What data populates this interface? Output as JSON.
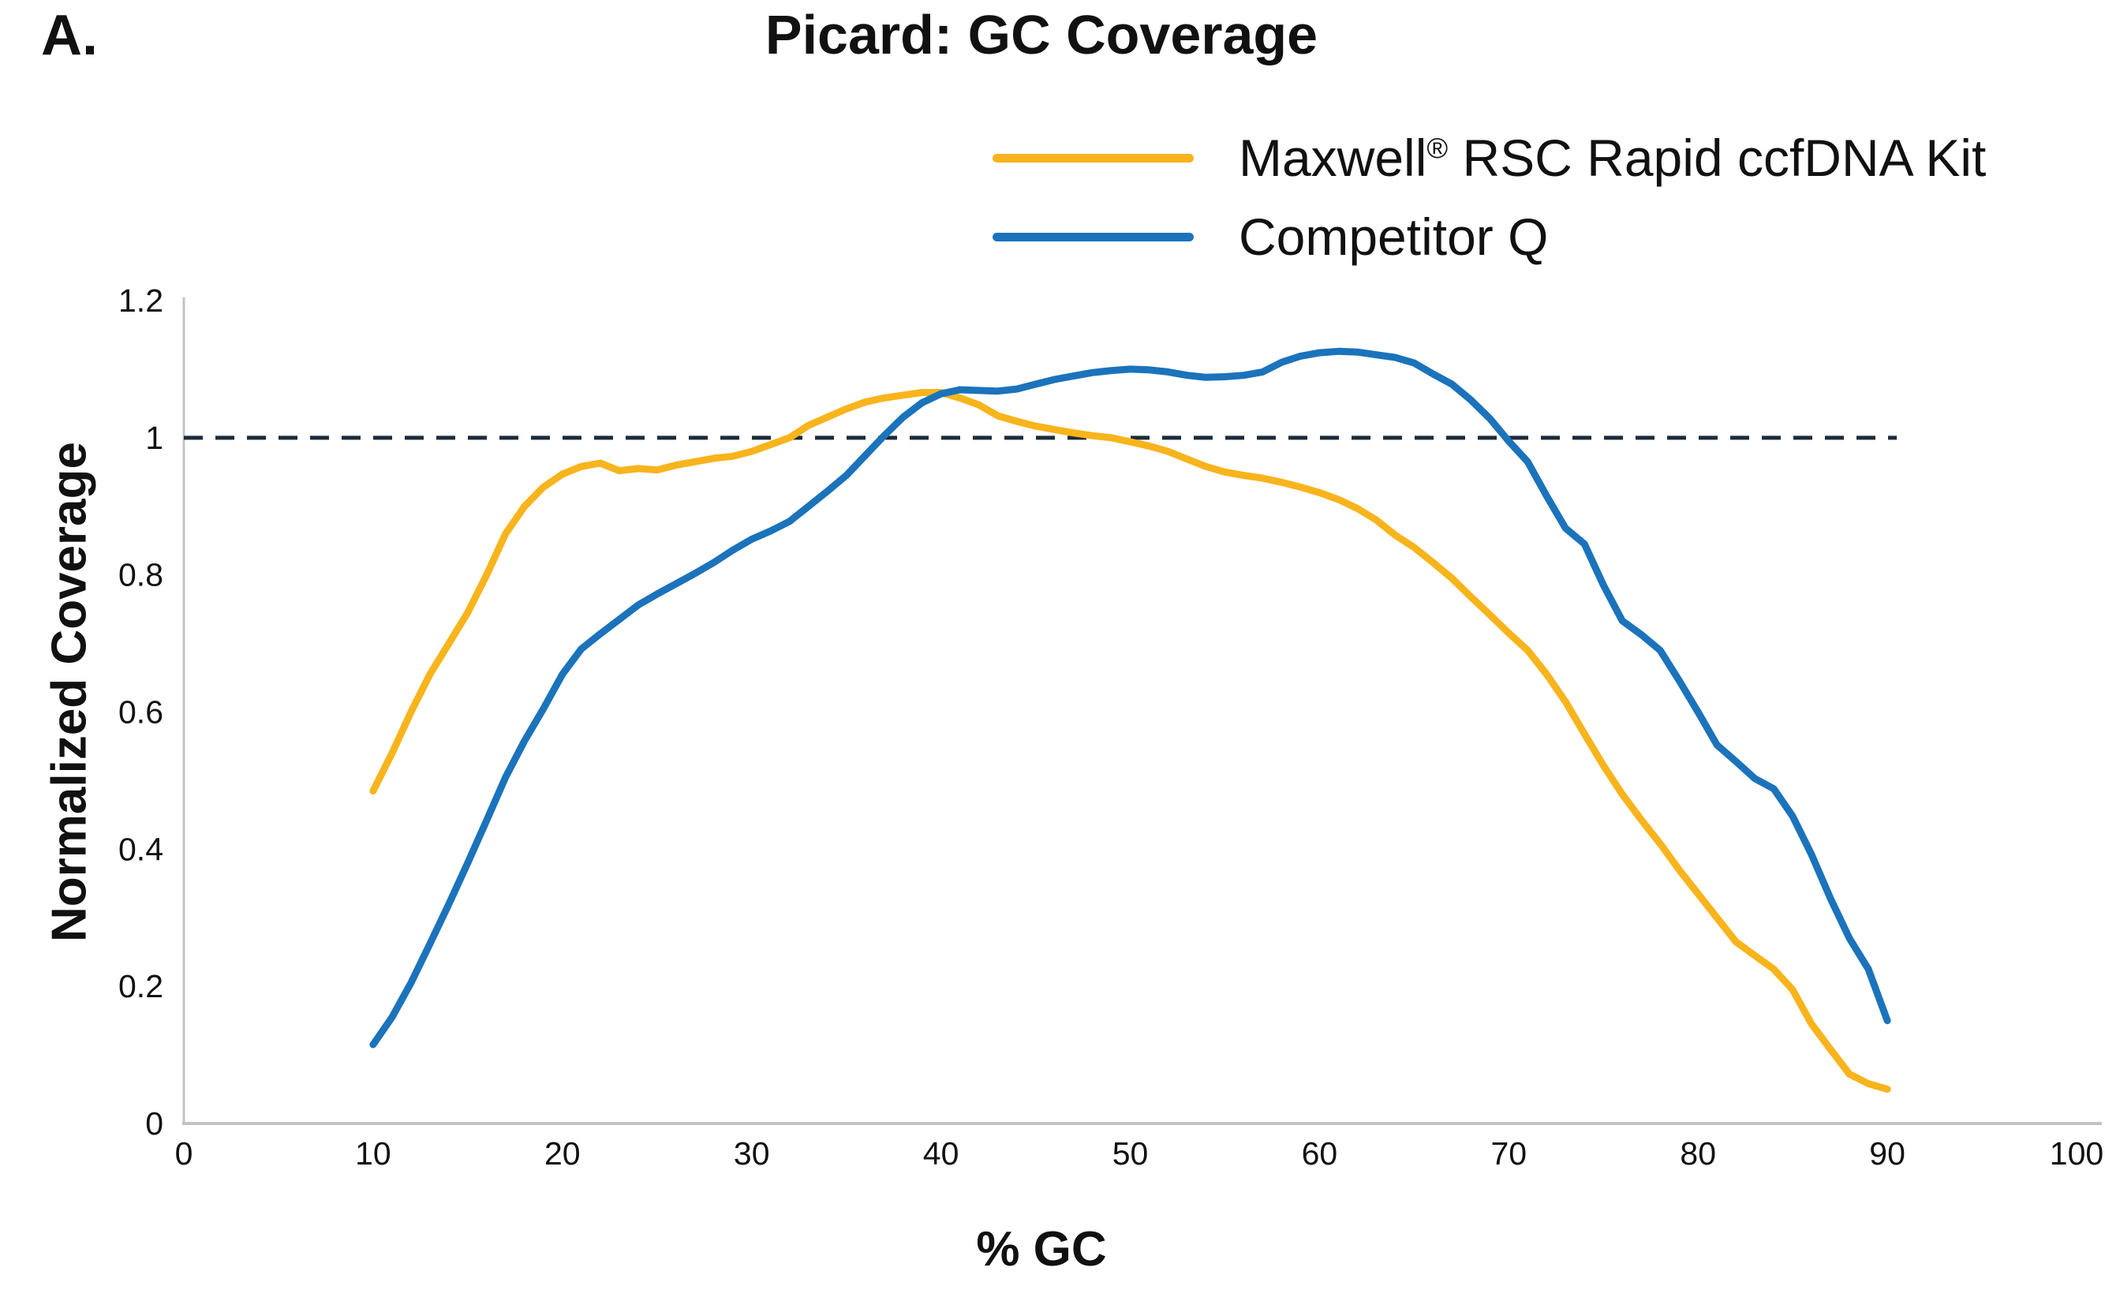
{
  "panel_label": "A.",
  "legend": {
    "maxwell": {
      "pre": "Maxwell",
      "sup": "®",
      "post": " RSC Rapid ccfDNA Kit"
    },
    "competitor": {
      "label": "Competitor Q"
    }
  },
  "colors": {
    "maxwell_yellow": "#F8B41C",
    "competitor_blue": "#1B73BB",
    "reference_dash": "#1C2B38",
    "axis_gray": "#C3C3C3",
    "text": "#111111"
  },
  "chart_data": {
    "type": "line",
    "title": "Picard: GC Coverage",
    "xlabel": "% GC",
    "ylabel": "Normalized Coverage",
    "xlim": [
      0,
      100
    ],
    "ylim": [
      0,
      1.2
    ],
    "grid": false,
    "legend_position": "top-right",
    "x_ticks": [
      {
        "v": 0,
        "label": "0"
      },
      {
        "v": 10,
        "label": "10"
      },
      {
        "v": 20,
        "label": "20"
      },
      {
        "v": 30,
        "label": "30"
      },
      {
        "v": 40,
        "label": "40"
      },
      {
        "v": 50,
        "label": "50"
      },
      {
        "v": 60,
        "label": "60"
      },
      {
        "v": 70,
        "label": "70"
      },
      {
        "v": 80,
        "label": "80"
      },
      {
        "v": 90,
        "label": "90"
      },
      {
        "v": 100,
        "label": "100"
      }
    ],
    "y_ticks": [
      {
        "v": 0,
        "label": "0"
      },
      {
        "v": 0.2,
        "label": "0.2"
      },
      {
        "v": 0.4,
        "label": "0.4"
      },
      {
        "v": 0.6,
        "label": "0.6"
      },
      {
        "v": 0.8,
        "label": "0.8"
      },
      {
        "v": 1,
        "label": "1"
      },
      {
        "v": 1.2,
        "label": "1.2"
      }
    ],
    "reference_line": {
      "y": 1,
      "x_start": 0,
      "x_end": 90.5,
      "style": "dashed",
      "color": "#1C2B38"
    },
    "series": [
      {
        "name": "Maxwell® RSC Rapid ccfDNA Kit",
        "color": "#F8B41C",
        "x": [
          10,
          11,
          12,
          13,
          14,
          15,
          16,
          17,
          18,
          19,
          20,
          21,
          22,
          23,
          24,
          25,
          26,
          27,
          28,
          29,
          30,
          31,
          32,
          33,
          34,
          35,
          36,
          37,
          38,
          39,
          40,
          41,
          42,
          43,
          44,
          45,
          46,
          47,
          48,
          49,
          50,
          51,
          52,
          53,
          54,
          55,
          56,
          57,
          58,
          59,
          60,
          61,
          62,
          63,
          64,
          65,
          66,
          67,
          68,
          69,
          70,
          71,
          72,
          73,
          74,
          75,
          76,
          77,
          78,
          79,
          80,
          81,
          82,
          83,
          84,
          85,
          86,
          87,
          88,
          89,
          90
        ],
        "y": [
          0.485,
          0.54,
          0.6,
          0.655,
          0.7,
          0.745,
          0.8,
          0.86,
          0.9,
          0.928,
          0.947,
          0.958,
          0.963,
          0.952,
          0.955,
          0.953,
          0.96,
          0.965,
          0.97,
          0.973,
          0.98,
          0.99,
          1.0,
          1.018,
          1.03,
          1.042,
          1.052,
          1.058,
          1.062,
          1.066,
          1.066,
          1.058,
          1.048,
          1.032,
          1.024,
          1.017,
          1.012,
          1.007,
          1.003,
          1.0,
          0.994,
          0.988,
          0.98,
          0.969,
          0.958,
          0.95,
          0.945,
          0.941,
          0.935,
          0.928,
          0.92,
          0.91,
          0.897,
          0.88,
          0.858,
          0.84,
          0.818,
          0.795,
          0.768,
          0.742,
          0.715,
          0.69,
          0.655,
          0.615,
          0.568,
          0.522,
          0.48,
          0.443,
          0.408,
          0.37,
          0.335,
          0.3,
          0.265,
          0.245,
          0.225,
          0.195,
          0.145,
          0.108,
          0.072,
          0.058,
          0.05
        ]
      },
      {
        "name": "Competitor Q",
        "color": "#1B73BB",
        "x": [
          10,
          11,
          12,
          13,
          14,
          15,
          16,
          17,
          18,
          19,
          20,
          21,
          22,
          23,
          24,
          25,
          26,
          27,
          28,
          29,
          30,
          31,
          32,
          33,
          34,
          35,
          36,
          37,
          38,
          39,
          40,
          41,
          42,
          43,
          44,
          45,
          46,
          47,
          48,
          49,
          50,
          51,
          52,
          53,
          54,
          55,
          56,
          57,
          58,
          59,
          60,
          61,
          62,
          63,
          64,
          65,
          66,
          67,
          68,
          69,
          70,
          71,
          72,
          73,
          74,
          75,
          76,
          77,
          78,
          79,
          80,
          81,
          82,
          83,
          84,
          85,
          86,
          87,
          88,
          89,
          90
        ],
        "y": [
          0.115,
          0.155,
          0.205,
          0.262,
          0.32,
          0.38,
          0.442,
          0.505,
          0.558,
          0.605,
          0.655,
          0.692,
          0.714,
          0.735,
          0.756,
          0.772,
          0.787,
          0.802,
          0.818,
          0.836,
          0.852,
          0.864,
          0.878,
          0.9,
          0.922,
          0.945,
          0.974,
          1.003,
          1.03,
          1.051,
          1.064,
          1.07,
          1.069,
          1.068,
          1.071,
          1.078,
          1.085,
          1.09,
          1.095,
          1.098,
          1.1,
          1.099,
          1.096,
          1.091,
          1.088,
          1.089,
          1.091,
          1.096,
          1.11,
          1.119,
          1.124,
          1.126,
          1.125,
          1.121,
          1.117,
          1.109,
          1.093,
          1.078,
          1.055,
          1.028,
          0.995,
          0.965,
          0.915,
          0.868,
          0.845,
          0.785,
          0.733,
          0.713,
          0.69,
          0.646,
          0.6,
          0.552,
          0.528,
          0.503,
          0.488,
          0.448,
          0.392,
          0.328,
          0.27,
          0.225,
          0.15
        ]
      }
    ]
  }
}
